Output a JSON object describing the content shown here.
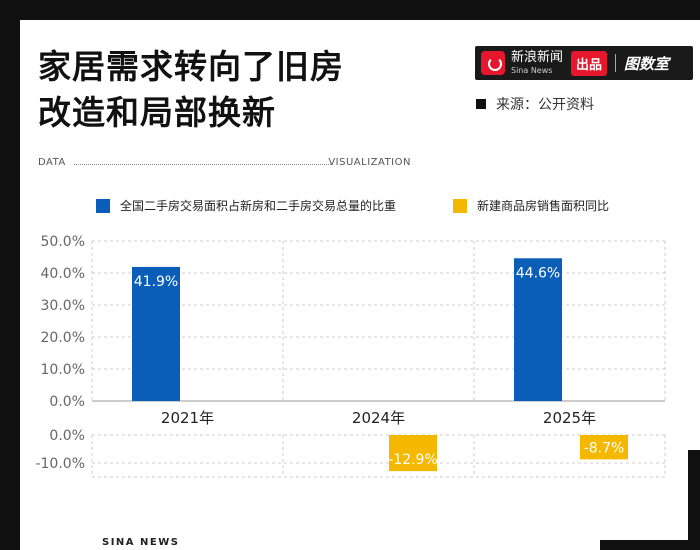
{
  "title_line1": "家居需求转向了旧房",
  "title_line2": "改造和局部换新",
  "brand": {
    "name_cn": "新浪新闻",
    "name_en": "Sina News",
    "badge": "出品",
    "logo2": "图数室"
  },
  "source": "来源：公开资料",
  "data_label": "DATA",
  "visualization_label": "VISUALIZATION",
  "footer": "SINA NEWS",
  "colors": {
    "series1": "#0a5eb8",
    "series2": "#f5b800",
    "grid": "#cccccc"
  },
  "chart_data": {
    "type": "bar",
    "categories": [
      "2021年",
      "2024年",
      "2025年"
    ],
    "series": [
      {
        "name": "全国二手房交易面积占新房和二手房交易总量的比重",
        "values": [
          41.9,
          null,
          44.6
        ],
        "labels": [
          "41.9%",
          "",
          "44.6%"
        ]
      },
      {
        "name": "新建商品房销售面积同比",
        "values": [
          null,
          -12.9,
          -8.7
        ],
        "labels": [
          "",
          "-12.9%",
          "-8.7%"
        ]
      }
    ],
    "upper_axis": {
      "ylim": [
        0,
        50
      ],
      "ticks": [
        "0.0%",
        "10.0%",
        "20.0%",
        "30.0%",
        "40.0%",
        "50.0%"
      ]
    },
    "lower_axis": {
      "ylim": [
        -15,
        0
      ],
      "ticks": [
        "0.0%",
        "-10.0%"
      ]
    },
    "grid": true,
    "legend_position": "top"
  }
}
